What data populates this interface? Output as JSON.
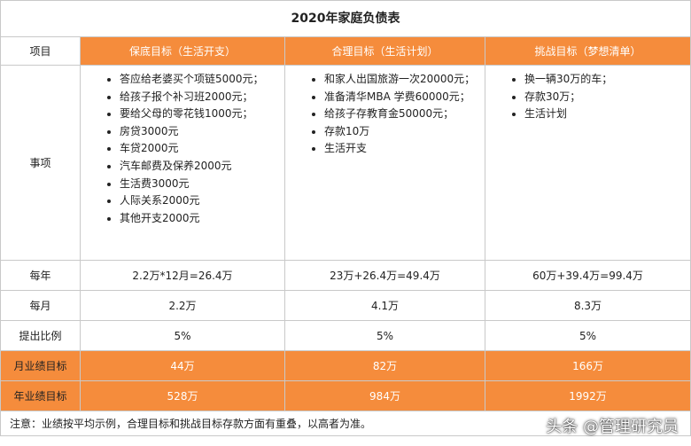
{
  "title": "2020年家庭负债表",
  "header": {
    "item_label": "项目",
    "columns": [
      "保底目标（生活开支）",
      "合理目标（生活计划）",
      "挑战目标（梦想清单）"
    ]
  },
  "items_row": {
    "label": "事项",
    "lists": [
      [
        "答应给老婆买个项链5000元；",
        "给孩子报个补习班2000元；",
        "要给父母的零花钱1000元；",
        "房贷3000元",
        "车贷2000元",
        "汽车邮费及保养2000元",
        "生活费3000元",
        "人际关系2000元",
        "其他开支2000元"
      ],
      [
        "和家人出国旅游一次20000元；",
        "准备清华MBA 学费60000元；",
        "给孩子存教育金50000元；",
        " 存款10万",
        "生活开支"
      ],
      [
        "换一辆30万的车；",
        "存款30万；",
        "生活计划"
      ]
    ]
  },
  "rows": {
    "yearly": {
      "label": "每年",
      "values": [
        "2.2万*12月=26.4万",
        "23万+26.4万=49.4万",
        "60万+39.4万=99.4万"
      ]
    },
    "monthly": {
      "label": "每月",
      "values": [
        "2.2万",
        "4.1万",
        "8.3万"
      ]
    },
    "ratio": {
      "label": "提出比例",
      "values": [
        "5%",
        "5%",
        "5%"
      ]
    },
    "monthly_target": {
      "label": "月业绩目标",
      "values": [
        "44万",
        "82万",
        "166万"
      ]
    },
    "yearly_target": {
      "label": "年业绩目标",
      "values": [
        "528万",
        "984万",
        "1992万"
      ]
    }
  },
  "note": "注意：业绩按平均示例，合理目标和挑战目标存款方面有重叠，以高者为准。",
  "watermark": "头条 @管理研究员",
  "colors": {
    "accent": "#f58c3c",
    "border": "#c9c9c9"
  }
}
